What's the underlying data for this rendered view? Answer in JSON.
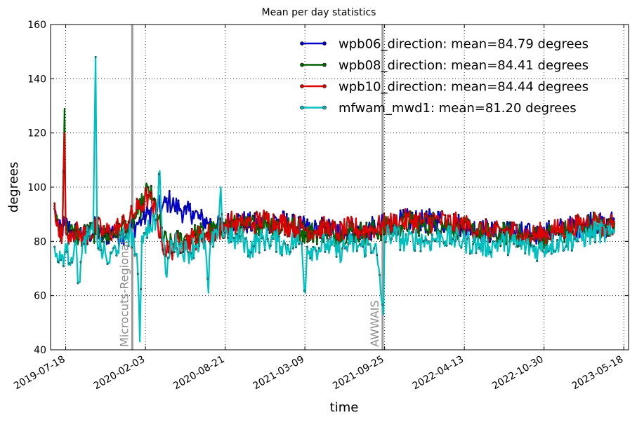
{
  "chart_data": {
    "type": "line",
    "title": "Mean per day statistics",
    "xlabel": "time",
    "ylabel": "degrees",
    "ylim": [
      40,
      160
    ],
    "xlim": [
      "2019-06-10",
      "2023-05-30"
    ],
    "yticks": [
      40,
      60,
      80,
      100,
      120,
      140,
      160
    ],
    "xticks": [
      "2019-07-18",
      "2020-02-03",
      "2020-08-21",
      "2021-03-09",
      "2021-09-25",
      "2022-04-13",
      "2022-10-30",
      "2023-05-18"
    ],
    "grid": true,
    "legend_position": "upper-right",
    "annotations": [
      {
        "date": "2020-01-01",
        "label": "Microcuts-Regional"
      },
      {
        "date": "2021-09-20",
        "label": "AWWAIS"
      }
    ],
    "series": [
      {
        "name": "wpb06_direction: mean=84.79 degrees",
        "color": "#0000cc",
        "points": [
          [
            "2019-06-20",
            92
          ],
          [
            "2019-07-01",
            83
          ],
          [
            "2019-07-15",
            86
          ],
          [
            "2019-08-01",
            84
          ],
          [
            "2019-08-20",
            83
          ],
          [
            "2019-09-10",
            82
          ],
          [
            "2019-10-01",
            85
          ],
          [
            "2019-10-20",
            81
          ],
          [
            "2019-11-10",
            84
          ],
          [
            "2019-12-01",
            82
          ],
          [
            "2019-12-20",
            84
          ],
          [
            "2020-01-10",
            86
          ],
          [
            "2020-01-25",
            88
          ],
          [
            "2020-02-10",
            90
          ],
          [
            "2020-03-01",
            93
          ],
          [
            "2020-03-15",
            92
          ],
          [
            "2020-04-01",
            95
          ],
          [
            "2020-04-15",
            93
          ],
          [
            "2020-05-01",
            92
          ],
          [
            "2020-05-15",
            90
          ],
          [
            "2020-06-01",
            91
          ],
          [
            "2020-06-20",
            88
          ],
          [
            "2020-07-10",
            87
          ],
          [
            "2020-08-01",
            85
          ],
          [
            "2020-08-21",
            86
          ],
          [
            "2020-09-15",
            88
          ],
          [
            "2020-10-10",
            87
          ],
          [
            "2020-11-01",
            86
          ],
          [
            "2020-12-01",
            87
          ],
          [
            "2021-01-01",
            88
          ],
          [
            "2021-02-01",
            86
          ],
          [
            "2021-03-01",
            85
          ],
          [
            "2021-04-01",
            84
          ],
          [
            "2021-05-01",
            85
          ],
          [
            "2021-06-01",
            83
          ],
          [
            "2021-07-01",
            85
          ],
          [
            "2021-08-01",
            84
          ],
          [
            "2021-09-01",
            85
          ],
          [
            "2021-10-01",
            86
          ],
          [
            "2021-11-01",
            87
          ],
          [
            "2021-12-01",
            88
          ],
          [
            "2022-01-01",
            87
          ],
          [
            "2022-02-01",
            88
          ],
          [
            "2022-03-01",
            87
          ],
          [
            "2022-04-01",
            86
          ],
          [
            "2022-05-01",
            85
          ],
          [
            "2022-06-01",
            84
          ],
          [
            "2022-07-01",
            83
          ],
          [
            "2022-08-01",
            84
          ],
          [
            "2022-09-01",
            83
          ],
          [
            "2022-10-01",
            82
          ],
          [
            "2022-11-01",
            83
          ],
          [
            "2022-12-01",
            84
          ],
          [
            "2023-01-01",
            85
          ],
          [
            "2023-02-01",
            86
          ],
          [
            "2023-03-01",
            88
          ],
          [
            "2023-04-01",
            85
          ],
          [
            "2023-04-25",
            88
          ]
        ]
      },
      {
        "name": "wpb08_direction: mean=84.41 degrees",
        "color": "#006400",
        "points": [
          [
            "2019-06-20",
            93
          ],
          [
            "2019-07-01",
            84
          ],
          [
            "2019-07-10",
            85
          ],
          [
            "2019-07-15",
            129
          ],
          [
            "2019-07-18",
            84
          ],
          [
            "2019-08-05",
            83
          ],
          [
            "2019-08-25",
            82
          ],
          [
            "2019-09-15",
            83
          ],
          [
            "2019-10-05",
            84
          ],
          [
            "2019-10-25",
            82
          ],
          [
            "2019-11-15",
            83
          ],
          [
            "2019-12-05",
            85
          ],
          [
            "2019-12-25",
            86
          ],
          [
            "2020-01-15",
            90
          ],
          [
            "2020-02-01",
            96
          ],
          [
            "2020-02-10",
            100
          ],
          [
            "2020-02-20",
            95
          ],
          [
            "2020-03-01",
            93
          ],
          [
            "2020-03-15",
            82
          ],
          [
            "2020-04-01",
            78
          ],
          [
            "2020-04-20",
            80
          ],
          [
            "2020-05-10",
            81
          ],
          [
            "2020-06-01",
            82
          ],
          [
            "2020-07-01",
            83
          ],
          [
            "2020-08-01",
            84
          ],
          [
            "2020-09-01",
            86
          ],
          [
            "2020-10-01",
            85
          ],
          [
            "2020-11-01",
            86
          ],
          [
            "2020-12-01",
            87
          ],
          [
            "2021-01-01",
            86
          ],
          [
            "2021-02-01",
            85
          ],
          [
            "2021-03-01",
            84
          ],
          [
            "2021-04-01",
            83
          ],
          [
            "2021-05-01",
            84
          ],
          [
            "2021-06-01",
            82
          ],
          [
            "2021-07-01",
            84
          ],
          [
            "2021-08-01",
            83
          ],
          [
            "2021-09-01",
            84
          ],
          [
            "2021-10-01",
            85
          ],
          [
            "2021-11-01",
            86
          ],
          [
            "2021-12-01",
            87
          ],
          [
            "2022-01-01",
            86
          ],
          [
            "2022-02-01",
            87
          ],
          [
            "2022-03-01",
            86
          ],
          [
            "2022-04-01",
            85
          ],
          [
            "2022-05-01",
            84
          ],
          [
            "2022-06-01",
            83
          ],
          [
            "2022-07-01",
            82
          ],
          [
            "2022-08-01",
            83
          ],
          [
            "2022-09-01",
            82
          ],
          [
            "2022-10-01",
            81
          ],
          [
            "2022-11-01",
            82
          ],
          [
            "2022-12-01",
            83
          ],
          [
            "2023-01-01",
            84
          ],
          [
            "2023-02-01",
            85
          ],
          [
            "2023-03-01",
            87
          ],
          [
            "2023-04-01",
            84
          ],
          [
            "2023-04-25",
            87
          ]
        ]
      },
      {
        "name": "wpb10_direction: mean=84.44 degrees",
        "color": "#dd0000",
        "points": [
          [
            "2019-06-20",
            94
          ],
          [
            "2019-07-01",
            82
          ],
          [
            "2019-07-10",
            84
          ],
          [
            "2019-07-15",
            120
          ],
          [
            "2019-07-18",
            83
          ],
          [
            "2019-08-05",
            84
          ],
          [
            "2019-08-25",
            82
          ],
          [
            "2019-09-15",
            83
          ],
          [
            "2019-10-05",
            85
          ],
          [
            "2019-10-25",
            83
          ],
          [
            "2019-11-15",
            84
          ],
          [
            "2019-12-05",
            86
          ],
          [
            "2019-12-25",
            88
          ],
          [
            "2020-01-15",
            92
          ],
          [
            "2020-02-01",
            95
          ],
          [
            "2020-02-10",
            97
          ],
          [
            "2020-02-20",
            93
          ],
          [
            "2020-03-01",
            90
          ],
          [
            "2020-03-15",
            80
          ],
          [
            "2020-04-01",
            76
          ],
          [
            "2020-04-20",
            79
          ],
          [
            "2020-05-10",
            80
          ],
          [
            "2020-06-01",
            81
          ],
          [
            "2020-07-01",
            82
          ],
          [
            "2020-08-01",
            84
          ],
          [
            "2020-09-01",
            87
          ],
          [
            "2020-10-01",
            86
          ],
          [
            "2020-11-01",
            87
          ],
          [
            "2020-12-01",
            88
          ],
          [
            "2021-01-01",
            87
          ],
          [
            "2021-02-01",
            86
          ],
          [
            "2021-03-01",
            85
          ],
          [
            "2021-04-01",
            84
          ],
          [
            "2021-05-01",
            85
          ],
          [
            "2021-06-01",
            83
          ],
          [
            "2021-07-01",
            85
          ],
          [
            "2021-08-01",
            84
          ],
          [
            "2021-09-01",
            85
          ],
          [
            "2021-10-01",
            86
          ],
          [
            "2021-11-01",
            87
          ],
          [
            "2021-12-01",
            88
          ],
          [
            "2022-01-01",
            87
          ],
          [
            "2022-02-01",
            88
          ],
          [
            "2022-03-01",
            87
          ],
          [
            "2022-04-01",
            86
          ],
          [
            "2022-05-01",
            85
          ],
          [
            "2022-06-01",
            84
          ],
          [
            "2022-07-01",
            83
          ],
          [
            "2022-08-01",
            84
          ],
          [
            "2022-09-01",
            83
          ],
          [
            "2022-10-01",
            82
          ],
          [
            "2022-11-01",
            83
          ],
          [
            "2022-12-01",
            84
          ],
          [
            "2023-01-01",
            85
          ],
          [
            "2023-02-01",
            86
          ],
          [
            "2023-03-01",
            88
          ],
          [
            "2023-04-01",
            85
          ],
          [
            "2023-04-25",
            87
          ]
        ]
      },
      {
        "name": "mfwam_mwd1: mean=81.20 degrees",
        "color": "#00bfbf",
        "points": [
          [
            "2019-06-20",
            78
          ],
          [
            "2019-07-01",
            72
          ],
          [
            "2019-07-10",
            75
          ],
          [
            "2019-07-20",
            76
          ],
          [
            "2019-08-01",
            74
          ],
          [
            "2019-08-10",
            80
          ],
          [
            "2019-08-20",
            65
          ],
          [
            "2019-09-01",
            79
          ],
          [
            "2019-09-15",
            82
          ],
          [
            "2019-09-25",
            83
          ],
          [
            "2019-10-01",
            148
          ],
          [
            "2019-10-05",
            80
          ],
          [
            "2019-10-20",
            76
          ],
          [
            "2019-11-05",
            72
          ],
          [
            "2019-11-20",
            78
          ],
          [
            "2019-12-05",
            80
          ],
          [
            "2019-12-20",
            83
          ],
          [
            "2020-01-05",
            81
          ],
          [
            "2020-01-15",
            68
          ],
          [
            "2020-01-20",
            43
          ],
          [
            "2020-01-25",
            82
          ],
          [
            "2020-02-05",
            85
          ],
          [
            "2020-02-15",
            86
          ],
          [
            "2020-03-01",
            88
          ],
          [
            "2020-03-10",
            106
          ],
          [
            "2020-03-15",
            85
          ],
          [
            "2020-03-25",
            68
          ],
          [
            "2020-04-10",
            80
          ],
          [
            "2020-05-01",
            78
          ],
          [
            "2020-05-20",
            76
          ],
          [
            "2020-06-10",
            79
          ],
          [
            "2020-07-01",
            80
          ],
          [
            "2020-07-10",
            61
          ],
          [
            "2020-07-15",
            79
          ],
          [
            "2020-08-01",
            81
          ],
          [
            "2020-08-10",
            100
          ],
          [
            "2020-08-15",
            82
          ],
          [
            "2020-08-25",
            84
          ],
          [
            "2020-09-10",
            80
          ],
          [
            "2020-10-01",
            82
          ],
          [
            "2020-10-20",
            77
          ],
          [
            "2020-11-10",
            80
          ],
          [
            "2020-12-01",
            81
          ],
          [
            "2021-01-01",
            80
          ],
          [
            "2021-01-20",
            78
          ],
          [
            "2021-02-10",
            80
          ],
          [
            "2021-03-01",
            79
          ],
          [
            "2021-03-10",
            61
          ],
          [
            "2021-03-15",
            78
          ],
          [
            "2021-04-01",
            77
          ],
          [
            "2021-05-01",
            79
          ],
          [
            "2021-06-01",
            76
          ],
          [
            "2021-07-01",
            79
          ],
          [
            "2021-08-01",
            78
          ],
          [
            "2021-09-01",
            79
          ],
          [
            "2021-09-22",
            53
          ],
          [
            "2021-09-25",
            82
          ],
          [
            "2021-10-15",
            83
          ],
          [
            "2021-11-15",
            80
          ],
          [
            "2021-12-15",
            81
          ],
          [
            "2022-01-15",
            80
          ],
          [
            "2022-02-15",
            82
          ],
          [
            "2022-03-15",
            81
          ],
          [
            "2022-04-15",
            80
          ],
          [
            "2022-05-15",
            79
          ],
          [
            "2022-06-15",
            78
          ],
          [
            "2022-07-15",
            80
          ],
          [
            "2022-08-15",
            79
          ],
          [
            "2022-09-15",
            78
          ],
          [
            "2022-10-15",
            77
          ],
          [
            "2022-11-15",
            79
          ],
          [
            "2022-12-15",
            80
          ],
          [
            "2023-01-15",
            81
          ],
          [
            "2023-02-15",
            82
          ],
          [
            "2023-03-15",
            84
          ],
          [
            "2023-04-15",
            82
          ],
          [
            "2023-04-25",
            84
          ]
        ]
      }
    ]
  }
}
